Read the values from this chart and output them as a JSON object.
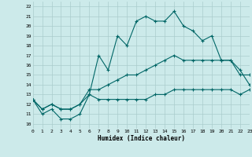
{
  "xlabel": "Humidex (Indice chaleur)",
  "xlim": [
    0,
    23
  ],
  "ylim": [
    9.5,
    22.5
  ],
  "xticks": [
    0,
    1,
    2,
    3,
    4,
    5,
    6,
    7,
    8,
    9,
    10,
    11,
    12,
    13,
    14,
    15,
    16,
    17,
    18,
    19,
    20,
    21,
    22,
    23
  ],
  "yticks": [
    10,
    11,
    12,
    13,
    14,
    15,
    16,
    17,
    18,
    19,
    20,
    21,
    22
  ],
  "bg_color": "#cceaea",
  "grid_color": "#aacccc",
  "line_color": "#006666",
  "line1": [
    12.5,
    11.0,
    11.5,
    10.5,
    10.5,
    11.0,
    13.0,
    17.0,
    15.5,
    19.0,
    18.0,
    20.5,
    21.0,
    20.5,
    20.5,
    21.5,
    20.0,
    19.5,
    18.5,
    19.0,
    16.5,
    16.5,
    15.0,
    15.0
  ],
  "line2": [
    12.5,
    11.5,
    12.0,
    11.5,
    11.5,
    12.0,
    13.5,
    13.5,
    14.0,
    14.5,
    15.0,
    15.0,
    15.5,
    16.0,
    16.5,
    17.0,
    16.5,
    16.5,
    16.5,
    16.5,
    16.5,
    16.5,
    15.5,
    14.0
  ],
  "line3": [
    12.5,
    11.5,
    12.0,
    11.5,
    11.5,
    12.0,
    13.0,
    12.5,
    12.5,
    12.5,
    12.5,
    12.5,
    12.5,
    13.0,
    13.0,
    13.5,
    13.5,
    13.5,
    13.5,
    13.5,
    13.5,
    13.5,
    13.0,
    13.5
  ]
}
